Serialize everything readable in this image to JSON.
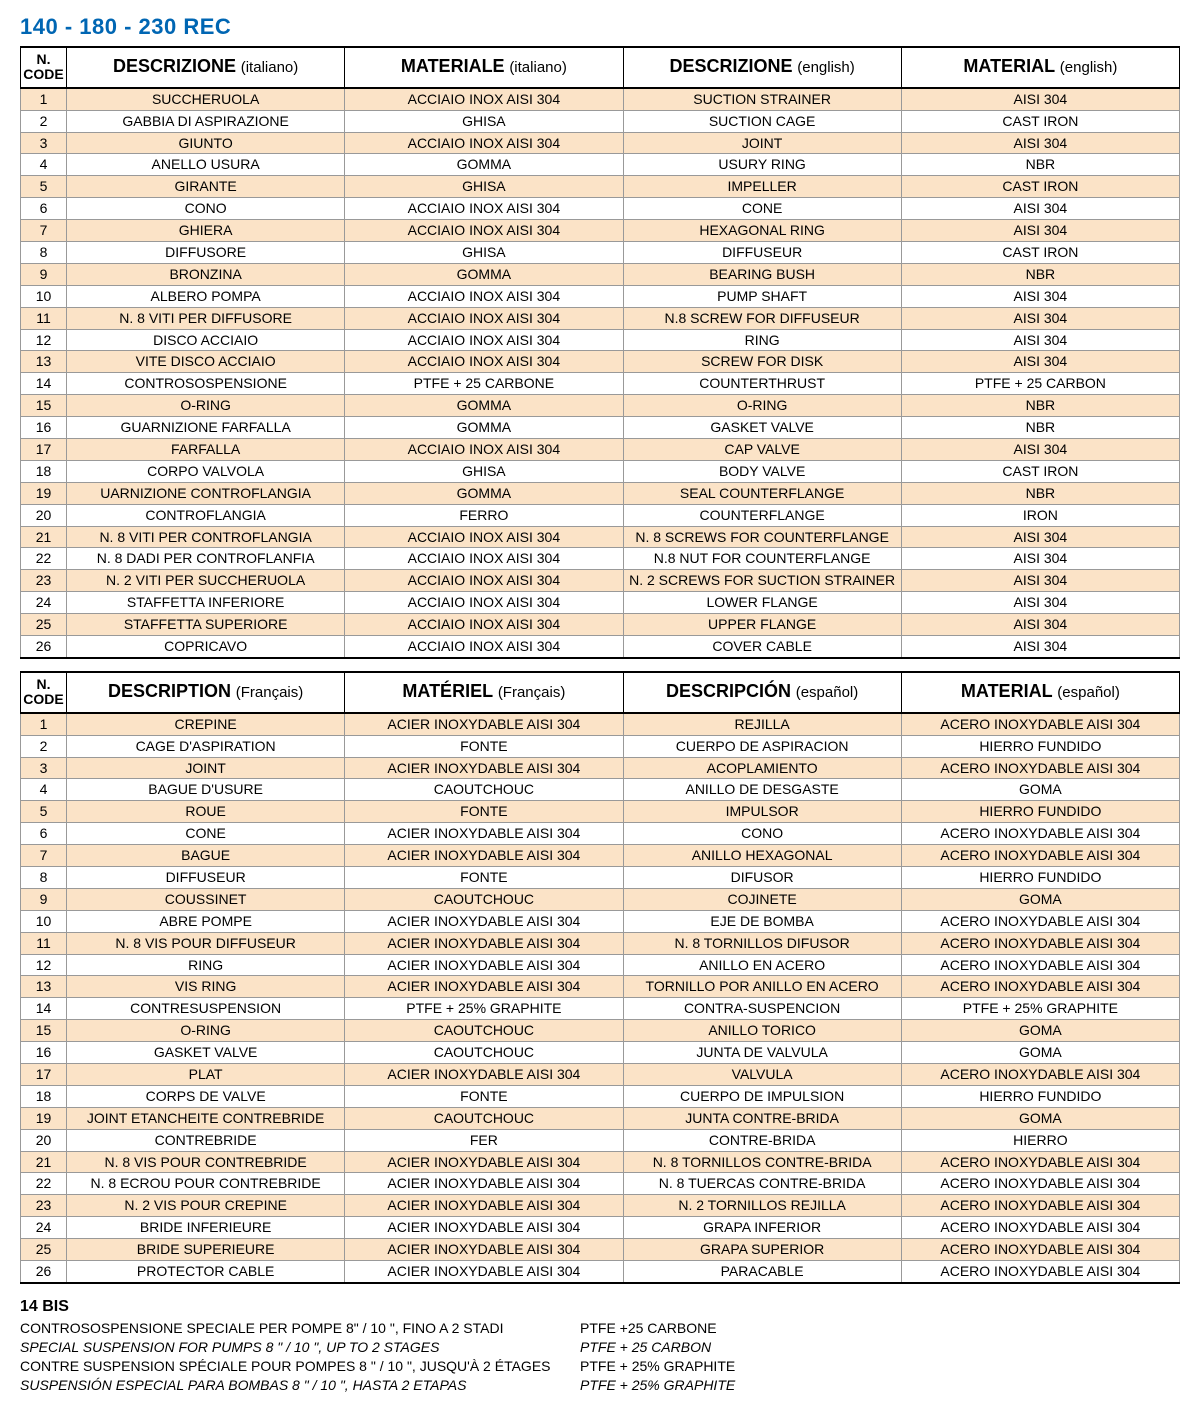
{
  "title": "140 - 180 - 230  REC",
  "table1": {
    "headers": {
      "code": "N.\nCODE",
      "c1_main": "DESCRIZIONE",
      "c1_sub": "(italiano)",
      "c2_main": "MATERIALE",
      "c2_sub": "(italiano)",
      "c3_main": "DESCRIZIONE",
      "c3_sub": "(english)",
      "c4_main": "MATERIAL",
      "c4_sub": "(english)"
    },
    "rows": [
      {
        "n": "1",
        "a": "SUCCHERUOLA",
        "b": "ACCIAIO INOX AISI 304",
        "c": "SUCTION STRAINER",
        "d": "AISI 304"
      },
      {
        "n": "2",
        "a": "GABBIA DI ASPIRAZIONE",
        "b": "GHISA",
        "c": "SUCTION CAGE",
        "d": "CAST IRON"
      },
      {
        "n": "3",
        "a": "GIUNTO",
        "b": "ACCIAIO INOX AISI 304",
        "c": "JOINT",
        "d": "AISI 304"
      },
      {
        "n": "4",
        "a": "ANELLO USURA",
        "b": "GOMMA",
        "c": "USURY RING",
        "d": "NBR"
      },
      {
        "n": "5",
        "a": "GIRANTE",
        "b": "GHISA",
        "c": "IMPELLER",
        "d": "CAST IRON"
      },
      {
        "n": "6",
        "a": "CONO",
        "b": "ACCIAIO INOX AISI 304",
        "c": "CONE",
        "d": "AISI 304"
      },
      {
        "n": "7",
        "a": "GHIERA",
        "b": "ACCIAIO INOX AISI 304",
        "c": "HEXAGONAL RING",
        "d": "AISI 304"
      },
      {
        "n": "8",
        "a": "DIFFUSORE",
        "b": "GHISA",
        "c": "DIFFUSEUR",
        "d": "CAST IRON"
      },
      {
        "n": "9",
        "a": "BRONZINA",
        "b": "GOMMA",
        "c": "BEARING BUSH",
        "d": "NBR"
      },
      {
        "n": "10",
        "a": "ALBERO POMPA",
        "b": "ACCIAIO INOX AISI 304",
        "c": "PUMP SHAFT",
        "d": "AISI 304"
      },
      {
        "n": "11",
        "a": "N. 8 VITI PER DIFFUSORE",
        "b": "ACCIAIO INOX AISI 304",
        "c": "N.8 SCREW FOR DIFFUSEUR",
        "d": "AISI 304"
      },
      {
        "n": "12",
        "a": "DISCO ACCIAIO",
        "b": "ACCIAIO INOX AISI 304",
        "c": "RING",
        "d": "AISI 304"
      },
      {
        "n": "13",
        "a": "VITE DISCO ACCIAIO",
        "b": "ACCIAIO INOX AISI 304",
        "c": "SCREW FOR DISK",
        "d": "AISI 304"
      },
      {
        "n": "14",
        "a": "CONTROSOSPENSIONE",
        "b": "PTFE + 25 CARBONE",
        "c": "COUNTERTHRUST",
        "d": "PTFE + 25 CARBON"
      },
      {
        "n": "15",
        "a": "O-RING",
        "b": "GOMMA",
        "c": "O-RING",
        "d": "NBR"
      },
      {
        "n": "16",
        "a": "GUARNIZIONE FARFALLA",
        "b": "GOMMA",
        "c": "GASKET VALVE",
        "d": "NBR"
      },
      {
        "n": "17",
        "a": "FARFALLA",
        "b": "ACCIAIO INOX AISI 304",
        "c": "CAP VALVE",
        "d": "AISI 304"
      },
      {
        "n": "18",
        "a": "CORPO VALVOLA",
        "b": "GHISA",
        "c": "BODY VALVE",
        "d": "CAST IRON"
      },
      {
        "n": "19",
        "a": "UARNIZIONE CONTROFLANGIA",
        "b": "GOMMA",
        "c": "SEAL COUNTERFLANGE",
        "d": "NBR"
      },
      {
        "n": "20",
        "a": "CONTROFLANGIA",
        "b": "FERRO",
        "c": "COUNTERFLANGE",
        "d": "IRON"
      },
      {
        "n": "21",
        "a": "N. 8 VITI PER CONTROFLANGIA",
        "b": "ACCIAIO INOX AISI 304",
        "c": "N. 8 SCREWS FOR COUNTERFLANGE",
        "d": "AISI 304"
      },
      {
        "n": "22",
        "a": "N. 8 DADI PER CONTROFLANFIA",
        "b": "ACCIAIO INOX AISI 304",
        "c": "N.8 NUT FOR COUNTERFLANGE",
        "d": "AISI 304"
      },
      {
        "n": "23",
        "a": "N. 2 VITI PER SUCCHERUOLA",
        "b": "ACCIAIO INOX AISI 304",
        "c": "N. 2 SCREWS FOR SUCTION STRAINER",
        "d": "AISI 304"
      },
      {
        "n": "24",
        "a": "STAFFETTA INFERIORE",
        "b": "ACCIAIO INOX AISI 304",
        "c": "LOWER FLANGE",
        "d": "AISI 304"
      },
      {
        "n": "25",
        "a": "STAFFETTA SUPERIORE",
        "b": "ACCIAIO INOX AISI 304",
        "c": "UPPER FLANGE",
        "d": "AISI 304"
      },
      {
        "n": "26",
        "a": "COPRICAVO",
        "b": "ACCIAIO INOX AISI 304",
        "c": "COVER CABLE",
        "d": "AISI 304"
      }
    ]
  },
  "table2": {
    "headers": {
      "code": "N.\nCODE",
      "c1_main": "DESCRIPTION",
      "c1_sub": "(Français)",
      "c2_main": "MATÉRIEL",
      "c2_sub": "(Français)",
      "c3_main": "DESCRIPCIÓN",
      "c3_sub": "(español)",
      "c4_main": "MATERIAL",
      "c4_sub": "(español)"
    },
    "rows": [
      {
        "n": "1",
        "a": "CREPINE",
        "b": "ACIER INOXYDABLE AISI 304",
        "c": "REJILLA",
        "d": "ACERO INOXYDABLE AISI 304"
      },
      {
        "n": "2",
        "a": "CAGE D'ASPIRATION",
        "b": "FONTE",
        "c": "CUERPO DE ASPIRACION",
        "d": "HIERRO FUNDIDO"
      },
      {
        "n": "3",
        "a": "JOINT",
        "b": "ACIER INOXYDABLE AISI 304",
        "c": "ACOPLAMIENTO",
        "d": "ACERO INOXYDABLE AISI 304"
      },
      {
        "n": "4",
        "a": "BAGUE D'USURE",
        "b": "CAOUTCHOUC",
        "c": "ANILLO DE DESGASTE",
        "d": "GOMA"
      },
      {
        "n": "5",
        "a": "ROUE",
        "b": "FONTE",
        "c": "IMPULSOR",
        "d": "HIERRO FUNDIDO"
      },
      {
        "n": "6",
        "a": "CONE",
        "b": "ACIER INOXYDABLE AISI 304",
        "c": "CONO",
        "d": "ACERO INOXYDABLE AISI 304"
      },
      {
        "n": "7",
        "a": "BAGUE",
        "b": "ACIER INOXYDABLE AISI 304",
        "c": "ANILLO HEXAGONAL",
        "d": "ACERO INOXYDABLE AISI 304"
      },
      {
        "n": "8",
        "a": "DIFFUSEUR",
        "b": "FONTE",
        "c": "DIFUSOR",
        "d": "HIERRO FUNDIDO"
      },
      {
        "n": "9",
        "a": "COUSSINET",
        "b": "CAOUTCHOUC",
        "c": "COJINETE",
        "d": "GOMA"
      },
      {
        "n": "10",
        "a": "ABRE POMPE",
        "b": "ACIER INOXYDABLE AISI 304",
        "c": "EJE DE BOMBA",
        "d": "ACERO INOXYDABLE AISI 304"
      },
      {
        "n": "11",
        "a": "N. 8 VIS POUR DIFFUSEUR",
        "b": "ACIER INOXYDABLE AISI 304",
        "c": "N. 8 TORNILLOS DIFUSOR",
        "d": "ACERO INOXYDABLE AISI 304"
      },
      {
        "n": "12",
        "a": "RING",
        "b": "ACIER INOXYDABLE AISI 304",
        "c": "ANILLO EN ACERO",
        "d": "ACERO INOXYDABLE AISI 304"
      },
      {
        "n": "13",
        "a": "VIS RING",
        "b": "ACIER INOXYDABLE AISI 304",
        "c": "TORNILLO POR ANILLO EN ACERO",
        "d": "ACERO INOXYDABLE AISI 304"
      },
      {
        "n": "14",
        "a": "CONTRESUSPENSION",
        "b": "PTFE + 25% GRAPHITE",
        "c": "CONTRA-SUSPENCION",
        "d": "PTFE + 25% GRAPHITE"
      },
      {
        "n": "15",
        "a": "O-RING",
        "b": "CAOUTCHOUC",
        "c": "ANILLO TORICO",
        "d": "GOMA"
      },
      {
        "n": "16",
        "a": "GASKET VALVE",
        "b": "CAOUTCHOUC",
        "c": "JUNTA DE VALVULA",
        "d": "GOMA"
      },
      {
        "n": "17",
        "a": "PLAT",
        "b": "ACIER INOXYDABLE AISI 304",
        "c": "VALVULA",
        "d": "ACERO INOXYDABLE AISI 304"
      },
      {
        "n": "18",
        "a": "CORPS DE VALVE",
        "b": "FONTE",
        "c": "CUERPO DE IMPULSION",
        "d": "HIERRO FUNDIDO"
      },
      {
        "n": "19",
        "a": "JOINT ETANCHEITE CONTREBRIDE",
        "b": "CAOUTCHOUC",
        "c": "JUNTA CONTRE-BRIDA",
        "d": "GOMA"
      },
      {
        "n": "20",
        "a": "CONTREBRIDE",
        "b": "FER",
        "c": "CONTRE-BRIDA",
        "d": "HIERRO"
      },
      {
        "n": "21",
        "a": "N. 8 VIS POUR CONTREBRIDE",
        "b": "ACIER INOXYDABLE AISI 304",
        "c": "N. 8 TORNILLOS CONTRE-BRIDA",
        "d": "ACERO INOXYDABLE AISI 304"
      },
      {
        "n": "22",
        "a": "N. 8 ECROU POUR CONTREBRIDE",
        "b": "ACIER INOXYDABLE AISI 304",
        "c": "N. 8 TUERCAS CONTRE-BRIDA",
        "d": "ACERO INOXYDABLE AISI 304"
      },
      {
        "n": "23",
        "a": "N. 2 VIS POUR CREPINE",
        "b": "ACIER INOXYDABLE AISI 304",
        "c": "N. 2 TORNILLOS REJILLA",
        "d": "ACERO INOXYDABLE AISI 304"
      },
      {
        "n": "24",
        "a": "BRIDE INFERIEURE",
        "b": "ACIER INOXYDABLE AISI 304",
        "c": "GRAPA INFERIOR",
        "d": "ACERO INOXYDABLE AISI 304"
      },
      {
        "n": "25",
        "a": "BRIDE SUPERIEURE",
        "b": "ACIER INOXYDABLE AISI 304",
        "c": "GRAPA SUPERIOR",
        "d": "ACERO INOXYDABLE AISI 304"
      },
      {
        "n": "26",
        "a": "PROTECTOR CABLE",
        "b": "ACIER INOXYDABLE AISI 304",
        "c": "PARACABLE",
        "d": "ACERO INOXYDABLE AISI 304"
      }
    ]
  },
  "footer": {
    "head": "14 BIS",
    "lines": [
      {
        "left": "CONTROSOSPENSIONE SPECIALE PER POMPE 8\" / 10 \", FINO A 2 STADI",
        "right": "PTFE +25 CARBONE",
        "ital": false
      },
      {
        "left": "SPECIAL SUSPENSION FOR PUMPS 8 \" / 10 \", UP TO 2 STAGES",
        "right": "PTFE + 25 CARBON",
        "ital": true
      },
      {
        "left": "CONTRE SUSPENSION SPÉCIALE POUR POMPES 8 \" / 10 \", JUSQU'À 2 ÉTAGES",
        "right": "PTFE + 25% GRAPHITE",
        "ital": false
      },
      {
        "left": "SUSPENSIÓN ESPECIAL PARA BOMBAS 8 \" / 10 \", HASTA 2 ETAPAS",
        "right": "PTFE + 25% GRAPHITE",
        "ital": true
      }
    ]
  },
  "colors": {
    "title": "#0066b3",
    "row_odd": "#fbe3c7",
    "row_even": "#ffffff",
    "border": "#999999",
    "border_heavy": "#000000"
  }
}
